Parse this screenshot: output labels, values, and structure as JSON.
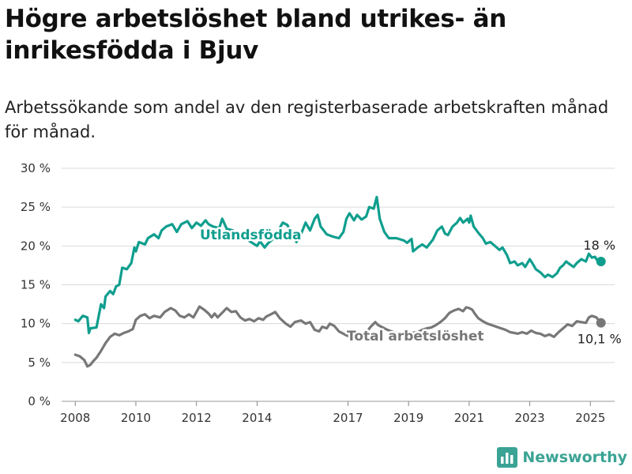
{
  "title": "Högre arbetslöshet bland utrikes- än inrikesfödda i Bjuv",
  "subtitle": "Arbetssökande som andel av den registerbaserade arbetskraften månad för månad.",
  "brand": {
    "name": "Newsworthy",
    "icon": "bar-chart-logo-icon"
  },
  "colors": {
    "foreign_born": "#0f9e8e",
    "total": "#777777",
    "grid": "#d9d9d9",
    "brand": "#3aa394"
  },
  "chart_data": {
    "type": "line",
    "title": "Högre arbetslöshet bland utrikes- än inrikesfödda i Bjuv",
    "subtitle": "Arbetssökande som andel av den registerbaserade arbetskraften månad för månad.",
    "xlim": [
      2007.55,
      2025.8
    ],
    "ylim": [
      0,
      30
    ],
    "y_ticks": [
      0,
      5,
      10,
      15,
      20,
      25,
      30
    ],
    "y_tick_labels": [
      "0 %",
      "5 %",
      "10 %",
      "15 %",
      "20 %",
      "25 %",
      "30 %"
    ],
    "x_ticks": [
      2008,
      2010,
      2012,
      2014,
      2017,
      2019,
      2021,
      2023,
      2025
    ],
    "x_tick_labels": [
      "2008",
      "2010",
      "2012",
      "2014",
      "2017",
      "2019",
      "2021",
      "2023",
      "2025"
    ],
    "grid": "horizontal",
    "series": [
      {
        "name": "Utlandsfödda",
        "color": "#0f9e8e",
        "end_label": "18 %",
        "points": [
          [
            2008.0,
            10.5
          ],
          [
            2008.1,
            10.3
          ],
          [
            2008.25,
            11.0
          ],
          [
            2008.4,
            10.8
          ],
          [
            2008.45,
            8.8
          ],
          [
            2008.5,
            9.4
          ],
          [
            2008.7,
            9.5
          ],
          [
            2008.85,
            12.5
          ],
          [
            2008.95,
            12.0
          ],
          [
            2009.0,
            13.5
          ],
          [
            2009.15,
            14.2
          ],
          [
            2009.25,
            13.8
          ],
          [
            2009.35,
            14.8
          ],
          [
            2009.45,
            15.0
          ],
          [
            2009.55,
            17.2
          ],
          [
            2009.7,
            17.0
          ],
          [
            2009.85,
            17.8
          ],
          [
            2009.95,
            19.8
          ],
          [
            2010.0,
            19.3
          ],
          [
            2010.1,
            20.5
          ],
          [
            2010.3,
            20.2
          ],
          [
            2010.4,
            21.0
          ],
          [
            2010.6,
            21.5
          ],
          [
            2010.75,
            21.0
          ],
          [
            2010.85,
            22.0
          ],
          [
            2011.0,
            22.5
          ],
          [
            2011.2,
            22.8
          ],
          [
            2011.35,
            21.8
          ],
          [
            2011.5,
            22.8
          ],
          [
            2011.7,
            23.2
          ],
          [
            2011.85,
            22.3
          ],
          [
            2012.0,
            23.0
          ],
          [
            2012.15,
            22.6
          ],
          [
            2012.3,
            23.3
          ],
          [
            2012.4,
            22.8
          ],
          [
            2012.55,
            22.5
          ],
          [
            2012.75,
            22.3
          ],
          [
            2012.85,
            23.5
          ],
          [
            2013.0,
            22.2
          ],
          [
            2013.2,
            22.0
          ],
          [
            2013.4,
            21.5
          ],
          [
            2013.6,
            21.0
          ],
          [
            2013.8,
            20.5
          ],
          [
            2014.0,
            20.0
          ],
          [
            2014.1,
            20.6
          ],
          [
            2014.25,
            19.8
          ],
          [
            2014.35,
            20.3
          ],
          [
            2014.55,
            21.0
          ],
          [
            2014.7,
            22.0
          ],
          [
            2014.85,
            23.0
          ],
          [
            2015.0,
            22.7
          ],
          [
            2015.15,
            21.5
          ],
          [
            2015.3,
            20.5
          ],
          [
            2015.45,
            21.5
          ],
          [
            2015.6,
            23.0
          ],
          [
            2015.75,
            22.0
          ],
          [
            2015.9,
            23.5
          ],
          [
            2016.0,
            24.0
          ],
          [
            2016.1,
            22.5
          ],
          [
            2016.3,
            21.5
          ],
          [
            2016.5,
            21.2
          ],
          [
            2016.7,
            21.0
          ],
          [
            2016.85,
            21.8
          ],
          [
            2016.95,
            23.5
          ],
          [
            2017.05,
            24.2
          ],
          [
            2017.2,
            23.3
          ],
          [
            2017.3,
            24.0
          ],
          [
            2017.45,
            23.4
          ],
          [
            2017.6,
            23.8
          ],
          [
            2017.7,
            25.0
          ],
          [
            2017.85,
            24.8
          ],
          [
            2017.95,
            26.3
          ],
          [
            2018.05,
            23.5
          ],
          [
            2018.2,
            21.8
          ],
          [
            2018.35,
            21.0
          ],
          [
            2018.6,
            21.0
          ],
          [
            2018.85,
            20.7
          ],
          [
            2018.95,
            20.4
          ],
          [
            2019.1,
            20.9
          ],
          [
            2019.15,
            19.3
          ],
          [
            2019.3,
            19.8
          ],
          [
            2019.45,
            20.2
          ],
          [
            2019.6,
            19.8
          ],
          [
            2019.7,
            20.3
          ],
          [
            2019.8,
            20.8
          ],
          [
            2019.95,
            22.0
          ],
          [
            2020.1,
            22.5
          ],
          [
            2020.2,
            21.6
          ],
          [
            2020.3,
            21.4
          ],
          [
            2020.45,
            22.5
          ],
          [
            2020.6,
            23.0
          ],
          [
            2020.7,
            23.6
          ],
          [
            2020.8,
            23.0
          ],
          [
            2020.95,
            23.5
          ],
          [
            2021.0,
            23.0
          ],
          [
            2021.05,
            23.9
          ],
          [
            2021.15,
            22.5
          ],
          [
            2021.3,
            21.7
          ],
          [
            2021.45,
            21.0
          ],
          [
            2021.55,
            20.3
          ],
          [
            2021.7,
            20.5
          ],
          [
            2021.85,
            20.0
          ],
          [
            2022.0,
            19.5
          ],
          [
            2022.1,
            19.8
          ],
          [
            2022.25,
            18.8
          ],
          [
            2022.35,
            17.8
          ],
          [
            2022.5,
            18.0
          ],
          [
            2022.6,
            17.5
          ],
          [
            2022.75,
            17.8
          ],
          [
            2022.85,
            17.3
          ],
          [
            2023.0,
            18.3
          ],
          [
            2023.1,
            17.7
          ],
          [
            2023.2,
            17.0
          ],
          [
            2023.35,
            16.6
          ],
          [
            2023.5,
            16.0
          ],
          [
            2023.6,
            16.3
          ],
          [
            2023.75,
            16.0
          ],
          [
            2023.9,
            16.5
          ],
          [
            2024.0,
            17.2
          ],
          [
            2024.1,
            17.5
          ],
          [
            2024.2,
            18.0
          ],
          [
            2024.3,
            17.7
          ],
          [
            2024.45,
            17.3
          ],
          [
            2024.55,
            17.8
          ],
          [
            2024.7,
            18.3
          ],
          [
            2024.85,
            18.0
          ],
          [
            2024.95,
            19.0
          ],
          [
            2025.05,
            18.5
          ],
          [
            2025.15,
            18.6
          ],
          [
            2025.25,
            18.0
          ],
          [
            2025.35,
            18.0
          ]
        ]
      },
      {
        "name": "Total arbetslöshet",
        "color": "#777777",
        "end_label": "10,1 %",
        "points": [
          [
            2008.0,
            6.0
          ],
          [
            2008.15,
            5.8
          ],
          [
            2008.3,
            5.3
          ],
          [
            2008.4,
            4.5
          ],
          [
            2008.5,
            4.7
          ],
          [
            2008.6,
            5.2
          ],
          [
            2008.7,
            5.6
          ],
          [
            2008.85,
            6.5
          ],
          [
            2009.0,
            7.5
          ],
          [
            2009.15,
            8.3
          ],
          [
            2009.3,
            8.7
          ],
          [
            2009.45,
            8.5
          ],
          [
            2009.6,
            8.8
          ],
          [
            2009.75,
            9.0
          ],
          [
            2009.9,
            9.3
          ],
          [
            2010.0,
            10.5
          ],
          [
            2010.15,
            11.0
          ],
          [
            2010.3,
            11.2
          ],
          [
            2010.45,
            10.7
          ],
          [
            2010.6,
            11.0
          ],
          [
            2010.8,
            10.8
          ],
          [
            2010.95,
            11.5
          ],
          [
            2011.15,
            12.0
          ],
          [
            2011.3,
            11.7
          ],
          [
            2011.45,
            11.0
          ],
          [
            2011.6,
            10.8
          ],
          [
            2011.75,
            11.2
          ],
          [
            2011.9,
            10.8
          ],
          [
            2012.0,
            11.5
          ],
          [
            2012.1,
            12.2
          ],
          [
            2012.25,
            11.8
          ],
          [
            2012.4,
            11.3
          ],
          [
            2012.5,
            10.8
          ],
          [
            2012.6,
            11.3
          ],
          [
            2012.7,
            10.8
          ],
          [
            2012.85,
            11.4
          ],
          [
            2013.0,
            12.0
          ],
          [
            2013.15,
            11.5
          ],
          [
            2013.3,
            11.6
          ],
          [
            2013.45,
            10.8
          ],
          [
            2013.6,
            10.4
          ],
          [
            2013.75,
            10.6
          ],
          [
            2013.9,
            10.3
          ],
          [
            2014.05,
            10.7
          ],
          [
            2014.2,
            10.5
          ],
          [
            2014.3,
            10.9
          ],
          [
            2014.45,
            11.2
          ],
          [
            2014.6,
            11.5
          ],
          [
            2014.75,
            10.7
          ],
          [
            2014.95,
            10.0
          ],
          [
            2015.1,
            9.6
          ],
          [
            2015.25,
            10.2
          ],
          [
            2015.45,
            10.4
          ],
          [
            2015.6,
            10.0
          ],
          [
            2015.75,
            10.2
          ],
          [
            2015.9,
            9.2
          ],
          [
            2016.05,
            9.0
          ],
          [
            2016.15,
            9.6
          ],
          [
            2016.3,
            9.4
          ],
          [
            2016.4,
            10.0
          ],
          [
            2016.55,
            9.7
          ],
          [
            2016.7,
            9.0
          ],
          [
            2016.85,
            8.7
          ],
          [
            2017.0,
            8.4
          ],
          [
            2017.15,
            8.6
          ],
          [
            2017.25,
            8.3
          ],
          [
            2017.4,
            8.5
          ],
          [
            2017.5,
            8.8
          ],
          [
            2017.65,
            9.1
          ],
          [
            2017.75,
            9.6
          ],
          [
            2017.9,
            10.2
          ],
          [
            2018.0,
            9.8
          ],
          [
            2018.15,
            9.5
          ],
          [
            2018.3,
            9.2
          ],
          [
            2018.5,
            8.9
          ],
          [
            2018.7,
            8.7
          ],
          [
            2018.9,
            8.6
          ],
          [
            2019.1,
            8.8
          ],
          [
            2019.3,
            8.9
          ],
          [
            2019.45,
            9.2
          ],
          [
            2019.6,
            9.4
          ],
          [
            2019.75,
            9.5
          ],
          [
            2019.9,
            9.8
          ],
          [
            2020.05,
            10.2
          ],
          [
            2020.2,
            10.7
          ],
          [
            2020.35,
            11.4
          ],
          [
            2020.5,
            11.7
          ],
          [
            2020.65,
            11.9
          ],
          [
            2020.8,
            11.6
          ],
          [
            2020.9,
            12.1
          ],
          [
            2021.0,
            12.0
          ],
          [
            2021.1,
            11.8
          ],
          [
            2021.2,
            11.2
          ],
          [
            2021.3,
            10.7
          ],
          [
            2021.45,
            10.3
          ],
          [
            2021.6,
            10.0
          ],
          [
            2021.75,
            9.8
          ],
          [
            2021.9,
            9.6
          ],
          [
            2022.05,
            9.4
          ],
          [
            2022.2,
            9.2
          ],
          [
            2022.35,
            8.9
          ],
          [
            2022.5,
            8.8
          ],
          [
            2022.6,
            8.7
          ],
          [
            2022.75,
            8.9
          ],
          [
            2022.9,
            8.7
          ],
          [
            2023.05,
            9.1
          ],
          [
            2023.2,
            8.8
          ],
          [
            2023.35,
            8.7
          ],
          [
            2023.5,
            8.4
          ],
          [
            2023.65,
            8.6
          ],
          [
            2023.8,
            8.3
          ],
          [
            2023.95,
            8.9
          ],
          [
            2024.1,
            9.4
          ],
          [
            2024.25,
            9.9
          ],
          [
            2024.4,
            9.7
          ],
          [
            2024.55,
            10.3
          ],
          [
            2024.7,
            10.2
          ],
          [
            2024.85,
            10.1
          ],
          [
            2024.95,
            10.8
          ],
          [
            2025.05,
            11.0
          ],
          [
            2025.2,
            10.8
          ],
          [
            2025.3,
            10.3
          ],
          [
            2025.35,
            10.1
          ]
        ]
      }
    ]
  }
}
